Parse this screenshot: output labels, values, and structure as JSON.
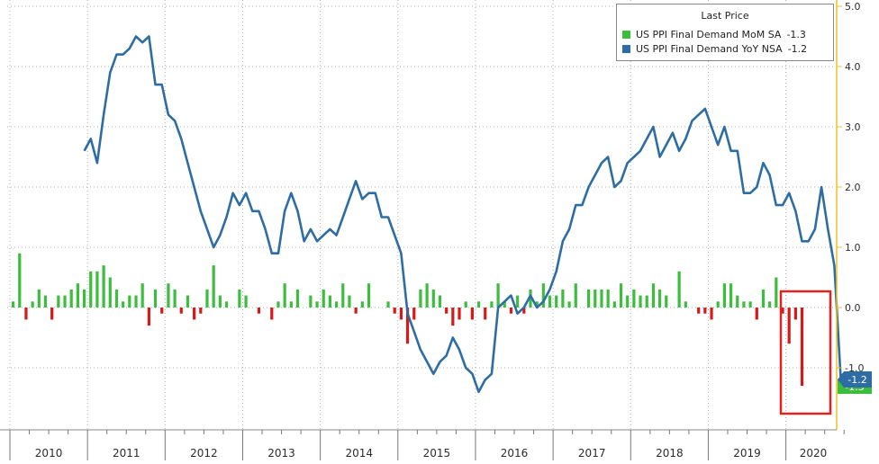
{
  "colors": {
    "mom": "#3dbd3d",
    "mom_neg": "#d51a1a",
    "yoy": "#2e6da4",
    "highlight": "#e32222",
    "grid": "#b0b0b0",
    "axis": "#f0c020",
    "text": "#2b2b2b"
  },
  "legend": {
    "title": "Last Price",
    "items": [
      {
        "label": "US PPI Final Demand MoM SA",
        "value": "-1.3"
      },
      {
        "label": "US PPI Final Demand YoY NSA",
        "value": "-1.2"
      }
    ]
  },
  "last_labels": {
    "yoy": "-1.2",
    "mom": "-1.3"
  },
  "chart_data": {
    "type": "bar+line",
    "y_ticks": [
      "5.0",
      "4.0",
      "3.0",
      "2.0",
      "1.0",
      "0.0",
      "-1.0"
    ],
    "ylim": [
      -2.0,
      5.0
    ],
    "x_labels": [
      "2010",
      "2011",
      "2012",
      "2013",
      "2014",
      "2015",
      "2016",
      "2017",
      "2018",
      "2019",
      "2020"
    ],
    "x_start": 2010,
    "series": [
      {
        "name": "US PPI Final Demand MoM SA",
        "type": "bar",
        "start": "2010-01",
        "values": [
          0.1,
          0.9,
          -0.2,
          0.1,
          0.3,
          0.2,
          -0.2,
          0.2,
          0.2,
          0.3,
          0.4,
          0.3,
          0.6,
          0.6,
          0.7,
          0.5,
          0.3,
          0.1,
          0.2,
          0.2,
          0.4,
          -0.3,
          0.3,
          -0.1,
          0.4,
          0.3,
          -0.1,
          0.2,
          -0.2,
          -0.1,
          0.3,
          0.7,
          0.2,
          0.1,
          0.0,
          0.3,
          0.2,
          0.0,
          -0.1,
          0.0,
          -0.2,
          0.1,
          0.4,
          0.1,
          0.3,
          0.0,
          0.2,
          0.1,
          0.3,
          0.2,
          0.1,
          0.4,
          0.2,
          -0.1,
          0.1,
          0.4,
          0.0,
          0.0,
          0.1,
          -0.1,
          -0.2,
          -0.6,
          -0.2,
          0.3,
          0.4,
          0.3,
          0.2,
          -0.1,
          -0.3,
          -0.2,
          0.1,
          -0.2,
          0.1,
          -0.2,
          0.1,
          0.4,
          0.1,
          -0.1,
          0.2,
          -0.1,
          0.3,
          0.1,
          0.4,
          0.2,
          0.2,
          0.3,
          0.1,
          0.4,
          0.0,
          0.3,
          0.3,
          0.3,
          0.3,
          0.1,
          0.4,
          0.2,
          0.3,
          0.2,
          0.2,
          0.4,
          0.3,
          0.2,
          0.0,
          0.6,
          0.1,
          0.0,
          -0.1,
          -0.1,
          -0.2,
          0.1,
          0.4,
          0.4,
          0.2,
          0.1,
          0.1,
          -0.2,
          0.3,
          0.1,
          0.5,
          -0.1,
          -0.6,
          -0.2,
          -1.3
        ]
      },
      {
        "name": "US PPI Final Demand YoY NSA",
        "type": "line",
        "start": "2010-01",
        "values": [
          null,
          null,
          null,
          null,
          null,
          null,
          null,
          null,
          null,
          null,
          null,
          2.6,
          2.8,
          2.4,
          3.2,
          3.9,
          4.2,
          4.2,
          4.3,
          4.5,
          4.4,
          4.5,
          3.7,
          3.7,
          3.2,
          3.1,
          2.8,
          2.4,
          2.0,
          1.6,
          1.3,
          1.0,
          1.2,
          1.5,
          1.9,
          1.7,
          1.9,
          1.6,
          1.6,
          1.3,
          0.9,
          0.9,
          1.6,
          1.9,
          1.6,
          1.1,
          1.3,
          1.1,
          1.2,
          1.3,
          1.2,
          1.5,
          1.8,
          2.1,
          1.8,
          1.9,
          1.9,
          1.5,
          1.5,
          1.2,
          0.9,
          -0.1,
          -0.4,
          -0.7,
          -0.9,
          -1.1,
          -0.9,
          -0.8,
          -0.5,
          -0.7,
          -1.0,
          -1.1,
          -1.4,
          -1.2,
          -1.1,
          0.0,
          0.1,
          0.2,
          -0.1,
          0.0,
          0.2,
          0.0,
          0.1,
          0.3,
          0.6,
          1.1,
          1.3,
          1.7,
          1.7,
          2.0,
          2.2,
          2.4,
          2.5,
          2.0,
          2.1,
          2.4,
          2.5,
          2.6,
          2.8,
          3.0,
          2.5,
          2.7,
          2.9,
          2.6,
          2.8,
          3.1,
          3.2,
          3.3,
          3.0,
          2.7,
          3.0,
          2.6,
          2.6,
          1.9,
          1.9,
          2.0,
          2.4,
          2.2,
          1.7,
          1.7,
          1.9,
          1.6,
          1.1,
          1.1,
          1.3,
          2.0,
          1.3,
          0.7,
          -1.2
        ]
      }
    ]
  }
}
